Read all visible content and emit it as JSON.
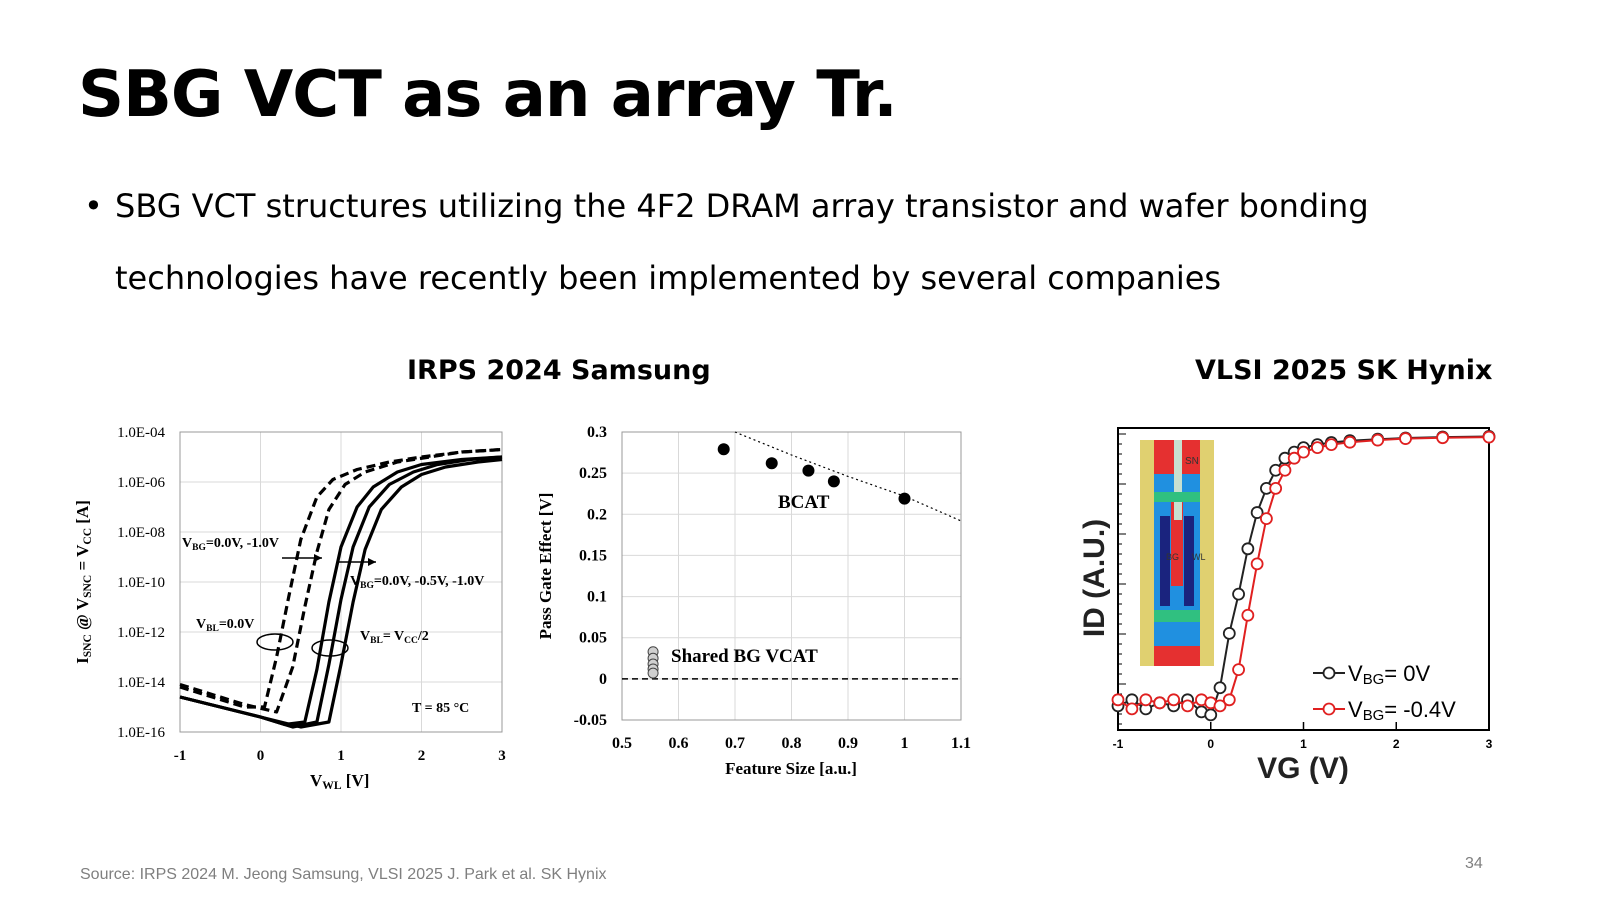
{
  "slide": {
    "title": "SBG VCT as an array Tr.",
    "bullet_symbol": "•",
    "bullet_line1": "SBG VCT structures utilizing the 4F2 DRAM array transistor and wafer bonding",
    "bullet_line2": "technologies have recently been implemented by several companies",
    "subhead_left": "IRPS 2024 Samsung",
    "subhead_right": "VLSI 2025 SK Hynix",
    "footer": "Source: IRPS 2024 M. Jeong Samsung, VLSI 2025 J. Park et al. SK Hynix",
    "page_number": "34"
  },
  "chart_data": [
    {
      "type": "line",
      "xlabel_main": "V",
      "xlabel_sub": "WL",
      "xlabel_unit": " [V]",
      "ylabel_parts": [
        "I",
        "SNC",
        " @ V",
        "SNC",
        " = V",
        "CC",
        " [A]"
      ],
      "x_ticks": [
        "-1",
        "0",
        "1",
        "2",
        "3"
      ],
      "y_ticks": [
        "1.0E-04",
        "1.0E-06",
        "1.0E-08",
        "1.0E-10",
        "1.0E-12",
        "1.0E-14",
        "1.0E-16"
      ],
      "xlim": [
        -1,
        3
      ],
      "ylim_log10": [
        -16,
        -4
      ],
      "ann_vbg_dash": [
        "V",
        "BG",
        "=0.0V, -1.0V"
      ],
      "ann_vbg_solid": [
        "V",
        "BG",
        "=0.0V, -0.5V, -1.0V"
      ],
      "ann_vbl0": [
        "V",
        "BL",
        "=0.0V"
      ],
      "ann_vblcc": [
        "V",
        "BL",
        "= V",
        "CC",
        "/2"
      ],
      "ann_temp": "T = 85 °C",
      "series": [
        {
          "style": "dashed",
          "x": [
            -1,
            -0.6,
            -0.2,
            0.05,
            0.2,
            0.35,
            0.5,
            0.7,
            0.9,
            1.2,
            1.6,
            2.0,
            2.5,
            3
          ],
          "log10y": [
            -14.2,
            -14.6,
            -15.0,
            -15.0,
            -13.0,
            -10.6,
            -8.3,
            -6.6,
            -5.9,
            -5.5,
            -5.2,
            -5.0,
            -4.8,
            -4.7
          ]
        },
        {
          "style": "dashed",
          "x": [
            -1,
            -0.6,
            -0.2,
            0.2,
            0.4,
            0.55,
            0.7,
            0.85,
            1.05,
            1.3,
            1.7,
            2.1,
            2.5,
            3
          ],
          "log10y": [
            -14.1,
            -14.5,
            -14.9,
            -15.2,
            -13.4,
            -11.0,
            -8.8,
            -7.1,
            -6.1,
            -5.6,
            -5.2,
            -5.0,
            -4.8,
            -4.7
          ]
        },
        {
          "style": "solid",
          "x": [
            -1,
            -0.5,
            0,
            0.3,
            0.55,
            0.7,
            0.85,
            1.0,
            1.2,
            1.4,
            1.7,
            2.0,
            2.5,
            3
          ],
          "log10y": [
            -14.6,
            -15.0,
            -15.4,
            -15.7,
            -15.6,
            -13.5,
            -10.8,
            -8.6,
            -7.0,
            -6.2,
            -5.6,
            -5.3,
            -5.1,
            -5.0
          ]
        },
        {
          "style": "solid",
          "x": [
            -1,
            -0.5,
            0,
            0.4,
            0.7,
            0.85,
            1.0,
            1.15,
            1.35,
            1.6,
            1.9,
            2.2,
            2.6,
            3
          ],
          "log10y": [
            -14.6,
            -15.0,
            -15.4,
            -15.8,
            -15.6,
            -13.3,
            -10.7,
            -8.6,
            -7.0,
            -6.1,
            -5.6,
            -5.3,
            -5.1,
            -5.0
          ]
        },
        {
          "style": "solid",
          "x": [
            -1,
            -0.5,
            0,
            0.5,
            0.85,
            1.0,
            1.15,
            1.3,
            1.5,
            1.75,
            2.0,
            2.3,
            2.7,
            3
          ],
          "log10y": [
            -14.6,
            -15.0,
            -15.4,
            -15.8,
            -15.6,
            -13.3,
            -10.8,
            -8.7,
            -7.1,
            -6.2,
            -5.7,
            -5.4,
            -5.2,
            -5.1
          ]
        }
      ]
    },
    {
      "type": "scatter",
      "xlabel": "Feature Size [a.u.]",
      "ylabel": "Pass Gate Effect [V]",
      "x_ticks": [
        "0.5",
        "0.6",
        "0.7",
        "0.8",
        "0.9",
        "1",
        "1.1"
      ],
      "y_ticks": [
        "0.3",
        "0.25",
        "0.2",
        "0.15",
        "0.1",
        "0.05",
        "0",
        "-0.05"
      ],
      "xlim": [
        0.5,
        1.1
      ],
      "ylim": [
        -0.05,
        0.3
      ],
      "label_bcat": "BCAT",
      "label_shared": "Shared BG VCAT",
      "bcat_points": [
        [
          0.68,
          0.279
        ],
        [
          0.765,
          0.262
        ],
        [
          0.83,
          0.253
        ],
        [
          0.875,
          0.24
        ],
        [
          1.0,
          0.219
        ]
      ],
      "shared_points": [
        [
          0.555,
          0.033
        ],
        [
          0.555,
          0.025
        ],
        [
          0.555,
          0.018
        ],
        [
          0.555,
          0.012
        ],
        [
          0.555,
          0.007
        ]
      ],
      "trend": [
        [
          0.7,
          0.3
        ],
        [
          0.8,
          0.272
        ],
        [
          0.9,
          0.246
        ],
        [
          1.0,
          0.222
        ],
        [
          1.1,
          0.192
        ]
      ],
      "zero_line_y": 0
    },
    {
      "type": "line",
      "xlabel": "VG (V)",
      "ylabel": "ID (A.U.)",
      "x_ticks": [
        "-1",
        "0",
        "1",
        "2",
        "3"
      ],
      "xlim": [
        -1,
        3
      ],
      "legend_position": "bottom-right",
      "inset_labels": [
        "SN",
        "BG",
        "WL"
      ],
      "series": [
        {
          "name_main": "V",
          "name_sub": "BG",
          "name_rest": "= 0V",
          "color": "#222222",
          "x": [
            -1,
            -0.85,
            -0.7,
            -0.55,
            -0.4,
            -0.25,
            -0.1,
            0.0,
            0.1,
            0.2,
            0.3,
            0.4,
            0.5,
            0.6,
            0.7,
            0.8,
            0.9,
            1.0,
            1.15,
            1.3,
            1.5,
            1.8,
            2.1,
            2.5,
            3.0
          ],
          "y": [
            0.08,
            0.1,
            0.07,
            0.09,
            0.08,
            0.1,
            0.06,
            0.05,
            0.14,
            0.32,
            0.45,
            0.6,
            0.72,
            0.8,
            0.86,
            0.9,
            0.92,
            0.935,
            0.945,
            0.952,
            0.958,
            0.963,
            0.967,
            0.97,
            0.972
          ]
        },
        {
          "name_main": "V",
          "name_sub": "BG",
          "name_rest": "= -0.4V",
          "color": "#e02020",
          "x": [
            -1,
            -0.85,
            -0.7,
            -0.55,
            -0.4,
            -0.25,
            -0.1,
            0.0,
            0.1,
            0.2,
            0.3,
            0.4,
            0.5,
            0.6,
            0.7,
            0.8,
            0.9,
            1.0,
            1.15,
            1.3,
            1.5,
            1.8,
            2.1,
            2.5,
            3.0
          ],
          "y": [
            0.1,
            0.07,
            0.1,
            0.09,
            0.1,
            0.08,
            0.1,
            0.09,
            0.08,
            0.1,
            0.2,
            0.38,
            0.55,
            0.7,
            0.8,
            0.86,
            0.9,
            0.92,
            0.935,
            0.945,
            0.953,
            0.96,
            0.965,
            0.968,
            0.97
          ]
        }
      ]
    }
  ]
}
